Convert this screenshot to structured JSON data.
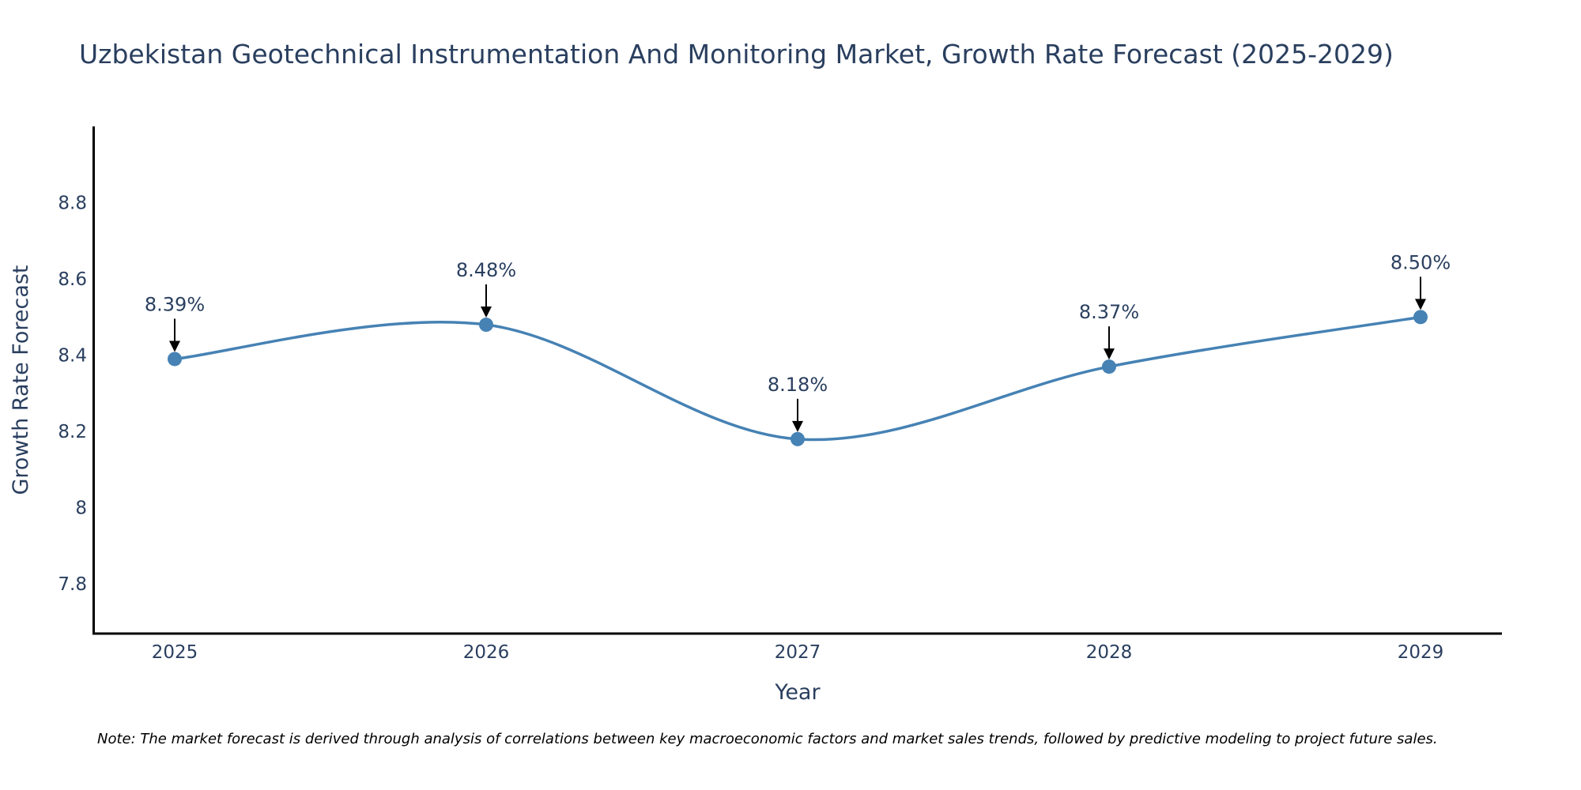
{
  "chart_data": {
    "type": "line",
    "title": "Uzbekistan Geotechnical Instrumentation And Monitoring Market, Growth Rate Forecast (2025-2029)",
    "xlabel": "Year",
    "ylabel": "Growth Rate Forecast",
    "categories": [
      "2025",
      "2026",
      "2027",
      "2028",
      "2029"
    ],
    "values": [
      8.39,
      8.48,
      8.18,
      8.37,
      8.5
    ],
    "data_labels": [
      "8.39%",
      "8.48%",
      "8.18%",
      "8.37%",
      "8.50%"
    ],
    "ylim": [
      7.67,
      9.0
    ],
    "yticks": [
      7.8,
      8.0,
      8.2,
      8.4,
      8.6,
      8.8
    ],
    "ytick_labels": [
      "7.8",
      "8",
      "8.2",
      "8.4",
      "8.6",
      "8.8"
    ],
    "line_color": "#4682b4",
    "line_shape": "spline",
    "grid": false,
    "note": "Note: The market forecast is derived through analysis of correlations between key macroeconomic factors and market sales trends, followed by predictive modeling to project future sales."
  }
}
